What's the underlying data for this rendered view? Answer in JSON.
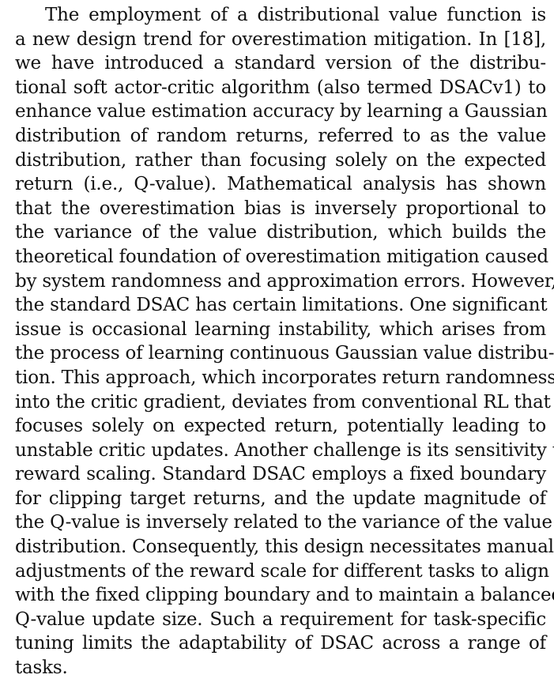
{
  "paragraph": {
    "lines": [
      "The employment of a distributional value function is",
      "a new design trend for overestimation mitigation. In [18],",
      "we have introduced a standard version of the distribu-",
      "tional soft actor-critic algorithm (also termed DSACv1) to",
      "enhance value estimation accuracy by learning a Gaussian",
      "distribution of random returns, referred to as the value",
      "distribution, rather than focusing solely on the expected",
      "return (i.e., Q-value). Mathematical analysis has shown",
      "that the overestimation bias is inversely proportional to",
      "the variance of the value distribution, which builds the",
      "theoretical foundation of overestimation mitigation caused",
      "by system randomness and approximation errors. However,",
      "the standard DSAC has certain limitations. One significant",
      "issue is occasional learning instability, which arises from",
      "the process of learning continuous Gaussian value distribu-",
      "tion. This approach, which incorporates return randomness",
      "into the critic gradient, deviates from conventional RL that",
      "focuses solely on expected return, potentially leading to",
      "unstable critic updates. Another challenge is its sensitivity to",
      "reward scaling. Standard DSAC employs a fixed boundary",
      "for clipping target returns, and the update magnitude of",
      "the Q-value is inversely related to the variance of the value",
      "distribution. Consequently, this design necessitates manual",
      "adjustments of the reward scale for different tasks to align",
      "with the fixed clipping boundary and to maintain a balanced",
      "Q-value update size. Such a requirement for task-specific",
      "tuning limits the adaptability of DSAC across a range of",
      "tasks."
    ]
  }
}
